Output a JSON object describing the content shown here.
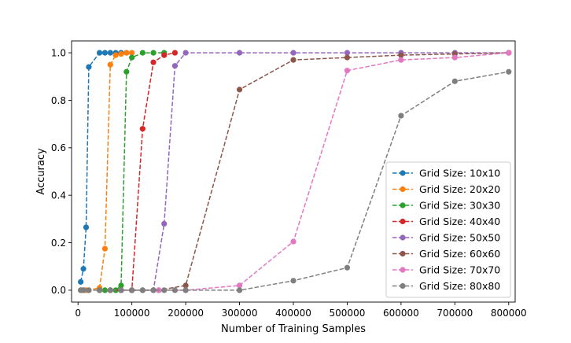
{
  "chart_data": {
    "type": "line",
    "title": "",
    "xlabel": "Number of Training Samples",
    "ylabel": "Accuracy",
    "xlim": [
      -12000,
      812000
    ],
    "ylim": [
      -0.05,
      1.05
    ],
    "x_ticks": [
      0,
      100000,
      200000,
      300000,
      400000,
      500000,
      600000,
      700000,
      800000
    ],
    "x_tick_labels": [
      "0",
      "100000",
      "200000",
      "300000",
      "400000",
      "500000",
      "600000",
      "700000",
      "800000"
    ],
    "y_ticks": [
      0.0,
      0.2,
      0.4,
      0.6,
      0.8,
      1.0
    ],
    "y_tick_labels": [
      "0.0",
      "0.2",
      "0.4",
      "0.6",
      "0.8",
      "1.0"
    ],
    "grid": false,
    "legend_position": "lower-right",
    "line_style": "dashed",
    "marker": "circle",
    "series": [
      {
        "name": "Grid Size: 10x10",
        "color": "#1f77b4",
        "x": [
          5000,
          10000,
          15000,
          20000,
          40000,
          50000,
          60000,
          70000,
          80000,
          90000
        ],
        "y": [
          0.035,
          0.09,
          0.265,
          0.94,
          1.0,
          1.0,
          1.0,
          1.0,
          1.0,
          1.0
        ]
      },
      {
        "name": "Grid Size: 20x20",
        "color": "#ff7f0e",
        "x": [
          5000,
          10000,
          15000,
          20000,
          40000,
          50000,
          60000,
          70000,
          80000,
          90000,
          100000
        ],
        "y": [
          0.0,
          0.0,
          0.0,
          0.0,
          0.01,
          0.175,
          0.95,
          0.99,
          0.995,
          1.0,
          1.0
        ]
      },
      {
        "name": "Grid Size: 30x30",
        "color": "#2ca02c",
        "x": [
          40000,
          50000,
          60000,
          70000,
          80000,
          90000,
          100000,
          120000,
          140000,
          160000
        ],
        "y": [
          0.0,
          0.0,
          0.0,
          0.0,
          0.02,
          0.92,
          0.98,
          1.0,
          1.0,
          1.0
        ]
      },
      {
        "name": "Grid Size: 40x40",
        "color": "#d62728",
        "x": [
          60000,
          80000,
          100000,
          120000,
          140000,
          160000,
          180000
        ],
        "y": [
          0.0,
          0.0,
          0.0,
          0.68,
          0.96,
          0.99,
          1.0
        ]
      },
      {
        "name": "Grid Size: 50x50",
        "color": "#9467bd",
        "x": [
          80000,
          100000,
          120000,
          140000,
          160000,
          180000,
          200000,
          300000,
          400000,
          500000,
          600000,
          700000,
          800000
        ],
        "y": [
          0.0,
          0.0,
          0.0,
          0.0,
          0.28,
          0.945,
          1.0,
          1.0,
          1.0,
          1.0,
          1.0,
          1.0,
          1.0
        ]
      },
      {
        "name": "Grid Size: 60x60",
        "color": "#8c564b",
        "x": [
          100000,
          150000,
          200000,
          300000,
          400000,
          500000,
          600000,
          700000,
          800000
        ],
        "y": [
          0.0,
          0.0,
          0.02,
          0.845,
          0.97,
          0.98,
          0.99,
          0.995,
          1.0
        ]
      },
      {
        "name": "Grid Size: 70x70",
        "color": "#e377c2",
        "x": [
          150000,
          200000,
          300000,
          400000,
          500000,
          600000,
          700000,
          800000
        ],
        "y": [
          0.0,
          0.0,
          0.02,
          0.205,
          0.925,
          0.97,
          0.98,
          1.0
        ]
      },
      {
        "name": "Grid Size: 80x80",
        "color": "#7f7f7f",
        "x": [
          5000,
          10000,
          20000,
          40000,
          60000,
          80000,
          100000,
          120000,
          140000,
          160000,
          180000,
          200000,
          300000,
          400000,
          500000,
          600000,
          700000,
          800000
        ],
        "y": [
          0.0,
          0.0,
          0.0,
          0.0,
          0.0,
          0.0,
          0.0,
          0.0,
          0.0,
          0.0,
          0.0,
          0.0,
          0.0,
          0.04,
          0.095,
          0.735,
          0.88,
          0.92
        ]
      }
    ]
  }
}
